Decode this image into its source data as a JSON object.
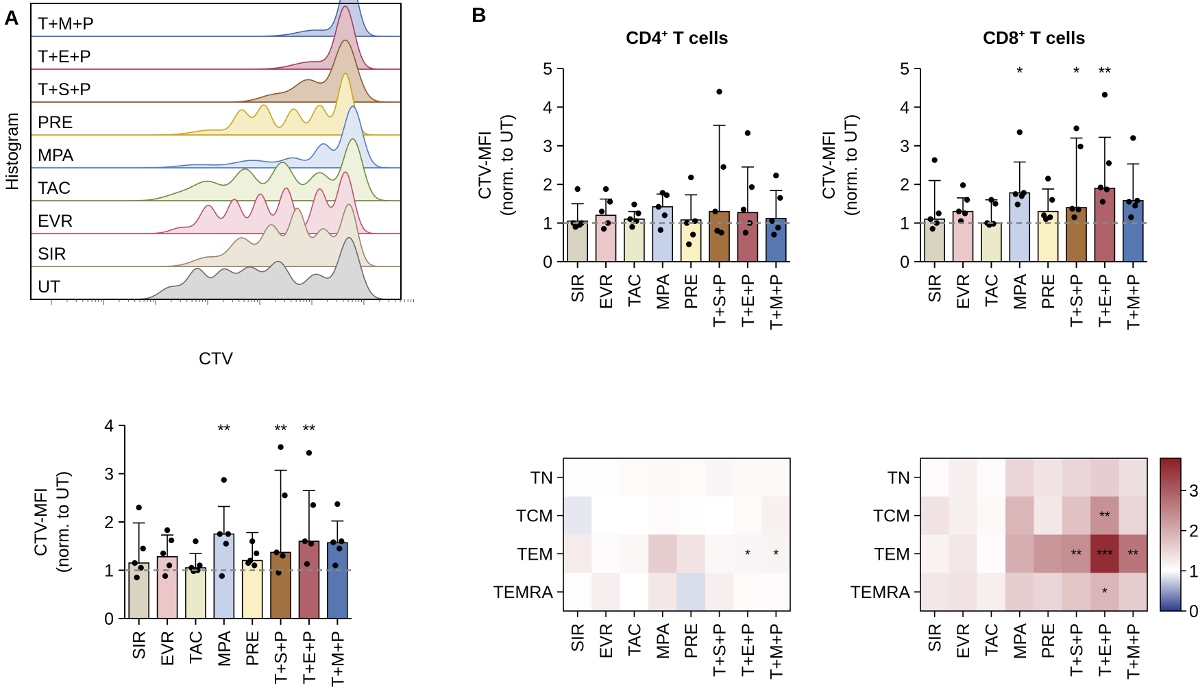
{
  "panel_labels": {
    "a": "A",
    "b": "B"
  },
  "colors": {
    "SIR": "#d9d3c2",
    "EVR": "#ecc7c9",
    "TAC": "#eaeacb",
    "MPA": "#c6d2ea",
    "PRE": "#fbf0c4",
    "T+S+P": "#a3703f",
    "T+E+P": "#b0626a",
    "T+M+P": "#5677b2",
    "reference_line": "#888888",
    "heatmap_low": "#2b3a8c",
    "heatmap_mid": "#ffffff",
    "heatmap_high": "#8b1c24"
  },
  "chart_data": [
    {
      "type": "histogram-stack",
      "id": "A_histogram",
      "ylabel": "Histogram",
      "xlabel": "CTV",
      "tracks": [
        {
          "label": "T+M+P",
          "color": "#4566ad",
          "fill": "#c3cde6",
          "peaks": [
            [
              0.86,
              1.0,
              0.022
            ],
            [
              0.77,
              0.1,
              0.05
            ]
          ]
        },
        {
          "label": "T+E+P",
          "color": "#a83a5e",
          "fill": "#dfc0c6",
          "peaks": [
            [
              0.85,
              1.0,
              0.024
            ],
            [
              0.76,
              0.12,
              0.05
            ]
          ]
        },
        {
          "label": "T+S+P",
          "color": "#8a5a30",
          "fill": "#dcc8b4",
          "peaks": [
            [
              0.85,
              1.0,
              0.03
            ],
            [
              0.75,
              0.35,
              0.035
            ],
            [
              0.66,
              0.12,
              0.04
            ]
          ]
        },
        {
          "label": "PRE",
          "color": "#c9a618",
          "fill": "#f6edc5",
          "peaks": [
            [
              0.85,
              1.0,
              0.02
            ],
            [
              0.78,
              0.48,
              0.02
            ],
            [
              0.71,
              0.42,
              0.02
            ],
            [
              0.63,
              0.48,
              0.02
            ],
            [
              0.57,
              0.38,
              0.02
            ],
            [
              0.49,
              0.08,
              0.05
            ]
          ]
        },
        {
          "label": "MPA",
          "color": "#4f7bc7",
          "fill": "#dfe7f5",
          "peaks": [
            [
              0.87,
              1.0,
              0.025
            ],
            [
              0.79,
              0.38,
              0.022
            ],
            [
              0.71,
              0.15,
              0.03
            ],
            [
              0.6,
              0.12,
              0.05
            ],
            [
              0.45,
              0.05,
              0.05
            ]
          ]
        },
        {
          "label": "TAC",
          "color": "#6e8c3c",
          "fill": "#eef1db",
          "peaks": [
            [
              0.87,
              1.0,
              0.026
            ],
            [
              0.78,
              0.45,
              0.03
            ],
            [
              0.68,
              0.62,
              0.03
            ],
            [
              0.58,
              0.5,
              0.03
            ],
            [
              0.48,
              0.3,
              0.04
            ],
            [
              0.4,
              0.1,
              0.04
            ]
          ]
        },
        {
          "label": "EVR",
          "color": "#c04e70",
          "fill": "#f3dde2",
          "peaks": [
            [
              0.85,
              1.0,
              0.022
            ],
            [
              0.78,
              0.72,
              0.02
            ],
            [
              0.69,
              0.74,
              0.02
            ],
            [
              0.62,
              0.64,
              0.02
            ],
            [
              0.55,
              0.55,
              0.02
            ],
            [
              0.48,
              0.45,
              0.022
            ],
            [
              0.41,
              0.1,
              0.03
            ]
          ]
        },
        {
          "label": "SIR",
          "color": "#9c8566",
          "fill": "#ece5da",
          "peaks": [
            [
              0.86,
              1.0,
              0.022
            ],
            [
              0.79,
              0.6,
              0.025
            ],
            [
              0.72,
              0.92,
              0.022
            ],
            [
              0.65,
              0.66,
              0.025
            ],
            [
              0.57,
              0.45,
              0.03
            ],
            [
              0.48,
              0.15,
              0.04
            ]
          ]
        },
        {
          "label": "UT",
          "color": "#6b6b6b",
          "fill": "#d9d9d9",
          "peaks": [
            [
              0.86,
              1.0,
              0.028
            ],
            [
              0.77,
              0.4,
              0.03
            ],
            [
              0.67,
              0.6,
              0.03
            ],
            [
              0.59,
              0.5,
              0.03
            ],
            [
              0.52,
              0.45,
              0.025
            ],
            [
              0.45,
              0.48,
              0.025
            ],
            [
              0.38,
              0.2,
              0.03
            ]
          ]
        }
      ]
    },
    {
      "type": "bar",
      "id": "A_bar",
      "categories": [
        "SIR",
        "EVR",
        "TAC",
        "MPA",
        "PRE",
        "T+S+P",
        "T+E+P",
        "T+M+P"
      ],
      "means": [
        1.15,
        1.28,
        1.05,
        1.75,
        1.2,
        1.37,
        1.6,
        1.57
      ],
      "sd": [
        0.83,
        0.45,
        0.3,
        0.57,
        0.58,
        1.7,
        1.05,
        0.45
      ],
      "points": [
        [
          2.3,
          1.45,
          1.15,
          1.05,
          0.85
        ],
        [
          1.83,
          1.62,
          1.35,
          1.1,
          0.88
        ],
        [
          1.6,
          1.1,
          1.05,
          1.0,
          0.98
        ],
        [
          2.87,
          1.75,
          1.75,
          1.55,
          0.88
        ],
        [
          1.6,
          1.35,
          1.15,
          1.1,
          1.2
        ],
        [
          3.55,
          2.55,
          1.37,
          1.3,
          0.95
        ],
        [
          3.43,
          2.35,
          1.6,
          1.55,
          1.13
        ],
        [
          2.37,
          1.6,
          1.58,
          1.45,
          1.1
        ]
      ],
      "significance": [
        "",
        "",
        "",
        "**",
        "",
        "**",
        "**",
        ""
      ],
      "ylabel_top": "CTV-MFI",
      "ylabel_bottom": "(norm. to UT)",
      "ylim": [
        0,
        4
      ],
      "yticks": [
        0,
        1,
        2,
        3,
        4
      ],
      "reference": 1
    },
    {
      "type": "bar",
      "id": "B_cd4",
      "title_main": "CD4",
      "title_sup": "+",
      "title_rest": " T cells",
      "categories": [
        "SIR",
        "EVR",
        "TAC",
        "MPA",
        "PRE",
        "T+S+P",
        "T+E+P",
        "T+M+P"
      ],
      "means": [
        1.05,
        1.2,
        1.1,
        1.42,
        1.08,
        1.3,
        1.27,
        1.12
      ],
      "sd": [
        0.45,
        0.42,
        0.2,
        0.33,
        0.65,
        2.23,
        1.18,
        0.72
      ],
      "points": [
        [
          1.88,
          1.0,
          1.0,
          0.95,
          0.9
        ],
        [
          1.88,
          1.55,
          1.3,
          1.0,
          0.85
        ],
        [
          1.48,
          1.25,
          1.1,
          1.05,
          0.9
        ],
        [
          1.78,
          1.72,
          1.42,
          1.2,
          0.82
        ],
        [
          2.18,
          1.05,
          1.0,
          0.7,
          0.45
        ],
        [
          4.4,
          2.45,
          1.3,
          0.75,
          0.8
        ],
        [
          3.33,
          1.93,
          1.35,
          1.0,
          0.75
        ],
        [
          2.23,
          1.65,
          1.05,
          0.88,
          0.7
        ]
      ],
      "significance": [
        "",
        "",
        "",
        "",
        "",
        "",
        "",
        ""
      ],
      "ylabel_top": "CTV-MFI",
      "ylabel_bottom": "(norm. to UT)",
      "ylim": [
        0,
        5
      ],
      "yticks": [
        0,
        1,
        2,
        3,
        4,
        5
      ],
      "reference": 1
    },
    {
      "type": "bar",
      "id": "B_cd8",
      "title_main": "CD8",
      "title_sup": "+",
      "title_rest": " T cells",
      "categories": [
        "SIR",
        "EVR",
        "TAC",
        "MPA",
        "PRE",
        "T+S+P",
        "T+E+P",
        "T+M+P"
      ],
      "means": [
        1.1,
        1.3,
        1.0,
        1.78,
        1.3,
        1.4,
        1.9,
        1.58
      ],
      "sd": [
        1.0,
        0.35,
        0.6,
        0.8,
        0.58,
        1.8,
        1.32,
        0.95
      ],
      "points": [
        [
          2.63,
          1.25,
          1.1,
          1.0,
          0.85
        ],
        [
          1.98,
          1.6,
          1.3,
          1.25,
          1.05
        ],
        [
          1.6,
          1.5,
          1.0,
          0.98,
          0.95
        ],
        [
          3.35,
          1.78,
          1.75,
          1.7,
          1.48
        ],
        [
          2.15,
          1.6,
          1.2,
          1.15,
          1.1
        ],
        [
          3.45,
          2.98,
          1.37,
          1.35,
          1.15
        ],
        [
          4.32,
          2.55,
          1.92,
          1.87,
          1.55
        ],
        [
          3.2,
          1.58,
          1.55,
          1.45,
          1.15
        ]
      ],
      "significance": [
        "",
        "",
        "",
        "*",
        "",
        "*",
        "**",
        ""
      ],
      "ylabel_top": "CTV-MFI",
      "ylabel_bottom": "(norm. to UT)",
      "ylim": [
        0,
        5
      ],
      "yticks": [
        0,
        1,
        2,
        3,
        4,
        5
      ],
      "reference": 1
    },
    {
      "type": "heatmap",
      "id": "B_heat_cd4",
      "rows": [
        "TN",
        "TCM",
        "TEM",
        "TEMRA"
      ],
      "columns": [
        "SIR",
        "EVR",
        "TAC",
        "MPA",
        "PRE",
        "T+S+P",
        "T+E+P",
        "T+M+P"
      ],
      "values": [
        [
          1.03,
          1.02,
          1.06,
          1.08,
          1.06,
          1.12,
          1.08,
          1.08
        ],
        [
          0.88,
          1.0,
          1.0,
          1.05,
          1.03,
          1.0,
          1.06,
          1.18
        ],
        [
          1.25,
          1.05,
          1.1,
          1.6,
          1.35,
          1.1,
          1.12,
          1.14
        ],
        [
          1.03,
          1.22,
          1.0,
          1.3,
          0.82,
          1.2,
          1.06,
          1.05
        ]
      ],
      "significance": [
        [
          "",
          "",
          "",
          "",
          "",
          "",
          "",
          ""
        ],
        [
          "",
          "",
          "",
          "",
          "",
          "",
          "",
          ""
        ],
        [
          "",
          "",
          "",
          "",
          "",
          "",
          "*",
          "*"
        ],
        [
          "",
          "",
          "",
          "",
          "",
          "",
          "",
          ""
        ]
      ],
      "vmin": 0,
      "vmax": 3.8
    },
    {
      "type": "heatmap",
      "id": "B_heat_cd8",
      "rows": [
        "TN",
        "TCM",
        "TEM",
        "TEMRA"
      ],
      "columns": [
        "SIR",
        "EVR",
        "TAC",
        "MPA",
        "PRE",
        "T+S+P",
        "T+E+P",
        "T+M+P"
      ],
      "values": [
        [
          1.05,
          1.2,
          1.05,
          1.5,
          1.35,
          1.5,
          1.6,
          1.4
        ],
        [
          1.35,
          1.2,
          1.08,
          1.9,
          1.3,
          1.75,
          2.35,
          1.5
        ],
        [
          1.15,
          1.3,
          1.05,
          2.0,
          2.3,
          2.4,
          3.6,
          2.7
        ],
        [
          1.3,
          1.35,
          1.2,
          1.6,
          1.5,
          1.7,
          1.9,
          1.6
        ]
      ],
      "significance": [
        [
          "",
          "",
          "",
          "",
          "",
          "",
          "",
          ""
        ],
        [
          "",
          "",
          "",
          "",
          "",
          "",
          "**",
          ""
        ],
        [
          "",
          "",
          "",
          "",
          "",
          "**",
          "***",
          "**"
        ],
        [
          "",
          "",
          "",
          "",
          "",
          "",
          "*",
          ""
        ]
      ],
      "vmin": 0,
      "vmax": 3.8
    },
    {
      "type": "colorbar",
      "id": "B_colorbar",
      "ticks": [
        0,
        1,
        2,
        3
      ],
      "vmin": 0,
      "vmax": 3.8
    }
  ]
}
